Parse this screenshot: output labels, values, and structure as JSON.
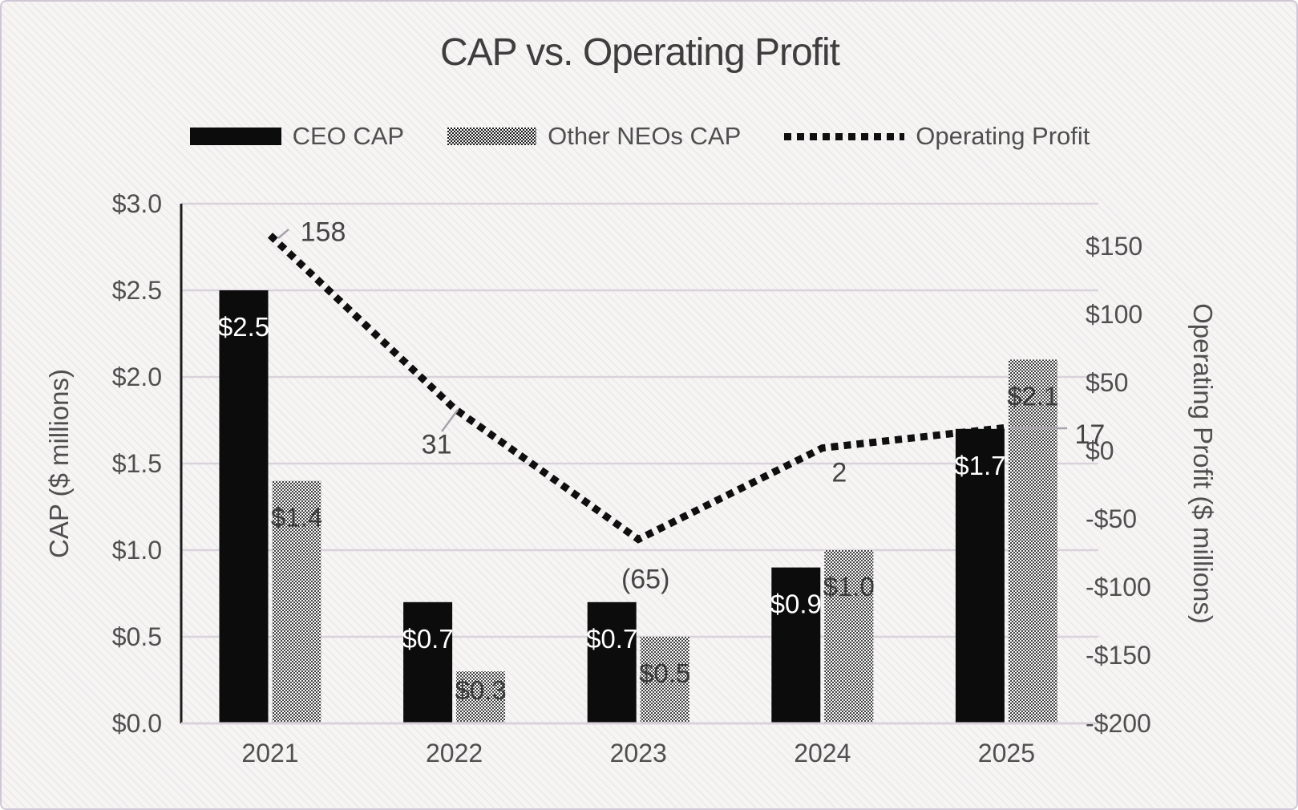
{
  "title": "CAP vs. Operating Profit",
  "legend": {
    "items": [
      {
        "label": "CEO CAP",
        "swatch": "solid-black-rect"
      },
      {
        "label": "Other NEOs CAP",
        "swatch": "halftone-gray-rect"
      },
      {
        "label": "Operating Profit",
        "swatch": "dotted-black-line"
      }
    ]
  },
  "left_axis": {
    "title": "CAP ($ millions)",
    "tick_labels": [
      "$3.0",
      "$2.5",
      "$2.0",
      "$1.5",
      "$1.0",
      "$0.5",
      "$0.0"
    ],
    "tick_values": [
      3.0,
      2.5,
      2.0,
      1.5,
      1.0,
      0.5,
      0.0
    ]
  },
  "right_axis": {
    "title": "Operating Profit ($ millions)",
    "tick_labels": [
      "$150",
      "$100",
      "$50",
      "$0",
      "-$50",
      "-$100",
      "-$150",
      "-$200"
    ],
    "tick_values": [
      150,
      100,
      50,
      0,
      -50,
      -100,
      -150,
      -200
    ]
  },
  "chart_data": {
    "type": "bar",
    "subtype": "bar-line-combo-dual-axis",
    "title": "CAP vs. Operating Profit",
    "categories": [
      "2021",
      "2022",
      "2023",
      "2024",
      "2025"
    ],
    "series": [
      {
        "name": "CEO CAP",
        "type": "bar",
        "axis": "primary",
        "values": [
          2.5,
          0.7,
          0.7,
          0.9,
          1.7
        ],
        "data_labels": [
          "$2.5",
          "$0.7",
          "$0.7",
          "$0.9",
          "$1.7"
        ],
        "fill": "solid-black",
        "label_color": "#ffffff"
      },
      {
        "name": "Other NEOs CAP",
        "type": "bar",
        "axis": "primary",
        "values": [
          1.4,
          0.3,
          0.5,
          1.0,
          2.1
        ],
        "data_labels": [
          "$1.4",
          "$0.3",
          "$0.5",
          "$1.0",
          "$2.1"
        ],
        "fill": "halftone-gray-dots",
        "label_color": "#3a3a3a"
      },
      {
        "name": "Operating Profit",
        "type": "line",
        "axis": "secondary",
        "style": "dotted",
        "values": [
          158,
          31,
          -65,
          2,
          17
        ],
        "data_labels": [
          "158",
          "31",
          "(65)",
          "2",
          "17"
        ]
      }
    ],
    "xlabel": "",
    "ylabel_left": "CAP ($ millions)",
    "ylabel_right": "Operating Profit ($ millions)",
    "ylim_left": [
      0.0,
      3.0
    ],
    "ylim_right": [
      -200,
      150
    ],
    "grid": true,
    "legend_position": "top"
  },
  "colors": {
    "bar_black": "#0c0c0c",
    "line_black": "#0f0f0f",
    "text_gray": "#4f4f4f",
    "grid_gray": "#d9d2da",
    "axis_line": "#1c1c1c",
    "leader_gray": "#a8a2ac",
    "background": "#f6f5f4",
    "border": "#cfc7d5"
  }
}
